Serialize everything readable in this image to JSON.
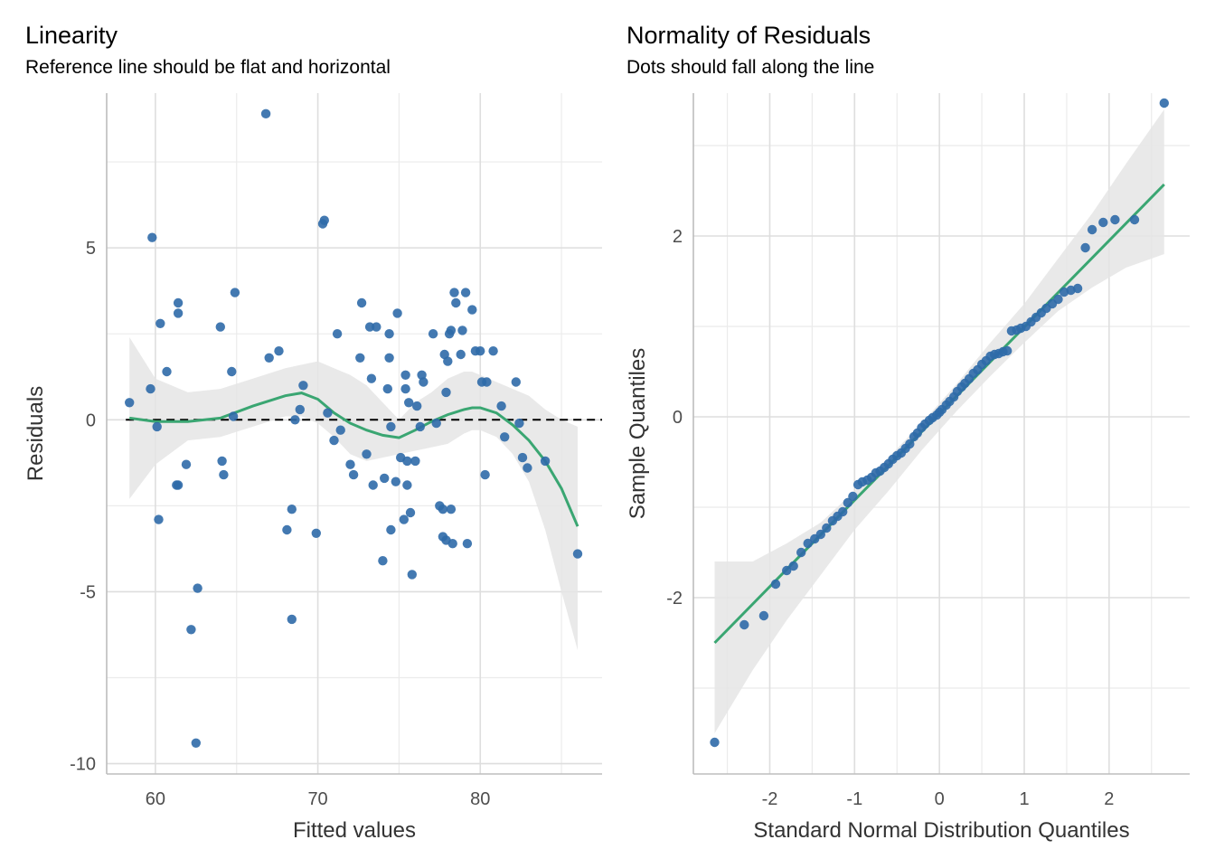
{
  "chart_data": [
    {
      "type": "scatter",
      "title": "Linearity",
      "subtitle": "Reference line should be flat and horizontal",
      "xlabel": "Fitted values",
      "ylabel": "Residuals",
      "xlim": [
        57,
        87.5
      ],
      "ylim": [
        -10.3,
        9.5
      ],
      "x_ticks": [
        60,
        70,
        80
      ],
      "x_tick_labels": [
        "60",
        "70",
        "80"
      ],
      "y_ticks": [
        -10,
        -5,
        0,
        5
      ],
      "y_tick_labels": [
        "-10",
        "-5",
        "0",
        "5"
      ],
      "grid": true,
      "reference_line": {
        "y": 0,
        "style": "dashed"
      },
      "point_color": "#2f6aa8",
      "smooth_color": "#3aa672",
      "band_color": "#e5e5e5",
      "points": {
        "x": [
          58.4,
          59.7,
          59.8,
          60.1,
          60.2,
          60.3,
          60.7,
          61.3,
          61.4,
          61.4,
          61.4,
          61.9,
          62.2,
          62.5,
          62.6,
          64.0,
          64.1,
          64.2,
          64.7,
          64.8,
          64.9,
          66.8,
          67.0,
          67.6,
          68.1,
          68.4,
          68.4,
          68.6,
          68.9,
          69.1,
          69.9,
          70.3,
          70.4,
          70.6,
          71.0,
          71.2,
          71.4,
          72.0,
          72.2,
          72.6,
          72.7,
          73.0,
          73.2,
          73.3,
          73.4,
          73.6,
          74.0,
          74.1,
          74.3,
          74.4,
          74.4,
          74.5,
          74.5,
          74.8,
          74.9,
          75.1,
          75.3,
          75.4,
          75.4,
          75.5,
          75.5,
          75.6,
          75.7,
          75.8,
          76.0,
          76.1,
          76.3,
          76.4,
          76.5,
          77.1,
          77.3,
          77.5,
          77.7,
          77.7,
          77.8,
          77.9,
          77.9,
          78.0,
          78.1,
          78.2,
          78.2,
          78.3,
          78.4,
          78.5,
          78.8,
          78.9,
          79.1,
          79.2,
          79.5,
          79.7,
          80.0,
          80.1,
          80.3,
          80.4,
          80.8,
          81.3,
          81.5,
          82.2,
          82.4,
          82.6,
          82.9,
          84.0,
          86.0
        ],
        "y": [
          0.5,
          0.9,
          5.3,
          -0.2,
          -2.9,
          2.8,
          1.4,
          -1.9,
          -1.9,
          3.1,
          3.4,
          -1.3,
          -6.1,
          -9.4,
          -4.9,
          2.7,
          -1.2,
          -1.6,
          1.4,
          0.1,
          3.7,
          8.9,
          1.8,
          2.0,
          -3.2,
          -2.6,
          -5.8,
          0.0,
          0.3,
          1.0,
          -3.3,
          5.7,
          5.8,
          0.2,
          -0.6,
          2.5,
          -0.3,
          -1.3,
          -1.6,
          1.8,
          3.4,
          -1.0,
          2.7,
          1.2,
          -1.9,
          2.7,
          -4.1,
          -1.7,
          0.9,
          1.8,
          2.5,
          -0.2,
          -3.2,
          -1.8,
          3.1,
          -1.1,
          -2.9,
          1.3,
          0.9,
          -1.2,
          -1.9,
          0.5,
          -2.7,
          -4.5,
          -1.2,
          0.4,
          -0.2,
          1.3,
          1.1,
          2.5,
          -0.1,
          -2.5,
          -3.4,
          -2.6,
          1.9,
          -3.5,
          0.8,
          1.7,
          2.5,
          2.6,
          -2.6,
          -3.6,
          3.7,
          3.4,
          1.9,
          2.6,
          3.7,
          -3.6,
          3.2,
          2.0,
          2.0,
          1.1,
          -1.6,
          1.1,
          2.0,
          0.4,
          -0.5,
          1.1,
          -0.1,
          -1.1,
          -1.4,
          -1.2,
          -3.9
        ]
      },
      "smooth": {
        "x": [
          58.4,
          60,
          62,
          64,
          66,
          68,
          69,
          70,
          71,
          72,
          73,
          74,
          75,
          76,
          77,
          78,
          79,
          79.5,
          80,
          81,
          82,
          83,
          84,
          85,
          86
        ],
        "y": [
          0.05,
          -0.05,
          -0.05,
          0.05,
          0.4,
          0.7,
          0.78,
          0.6,
          0.2,
          -0.1,
          -0.3,
          -0.45,
          -0.52,
          -0.3,
          -0.05,
          0.15,
          0.3,
          0.35,
          0.35,
          0.2,
          -0.15,
          -0.6,
          -1.2,
          -2.0,
          -3.1
        ],
        "lower": [
          -2.3,
          -1.3,
          -0.6,
          -0.5,
          -0.2,
          0.1,
          0.1,
          -0.1,
          -0.5,
          -1.0,
          -1.2,
          -1.1,
          -1.0,
          -0.9,
          -0.8,
          -0.7,
          -0.4,
          -0.3,
          -0.3,
          -0.5,
          -1.0,
          -1.8,
          -3.2,
          -5.0,
          -6.7
        ],
        "upper": [
          2.4,
          1.2,
          0.8,
          0.9,
          1.2,
          1.5,
          1.6,
          1.7,
          1.5,
          1.3,
          1.0,
          0.5,
          0.0,
          0.5,
          0.8,
          1.2,
          1.4,
          1.4,
          1.3,
          1.1,
          0.9,
          0.7,
          0.3,
          0.0,
          -0.2
        ]
      }
    },
    {
      "type": "scatter",
      "title": "Normality of Residuals",
      "subtitle": "Dots should fall along the line",
      "xlabel": "Standard Normal Distribution Quantiles",
      "ylabel": "Sample Quantiles",
      "xlim": [
        -2.9,
        2.95
      ],
      "ylim": [
        -3.95,
        3.58
      ],
      "x_ticks": [
        -2,
        -1,
        0,
        1,
        2
      ],
      "x_tick_labels": [
        "-2",
        "-1",
        "0",
        "1",
        "2"
      ],
      "y_ticks": [
        -2,
        0,
        2
      ],
      "y_tick_labels": [
        "-2",
        "0",
        "2"
      ],
      "grid": true,
      "point_color": "#2f6aa8",
      "line_color": "#3aa672",
      "band_color": "#e5e5e5",
      "line": {
        "x": [
          -2.65,
          2.65
        ],
        "y": [
          -2.5,
          2.57
        ]
      },
      "band": {
        "x": [
          -2.65,
          -2.2,
          -1.8,
          -1.4,
          -1.0,
          -0.6,
          -0.2,
          0.2,
          0.6,
          1.0,
          1.4,
          1.8,
          2.2,
          2.65
        ],
        "lower": [
          -3.5,
          -2.8,
          -2.25,
          -1.75,
          -1.25,
          -0.82,
          -0.36,
          0.06,
          0.45,
          0.82,
          1.17,
          1.43,
          1.65,
          1.8
        ],
        "upper": [
          -1.6,
          -1.6,
          -1.4,
          -1.17,
          -0.82,
          -0.45,
          -0.06,
          0.36,
          0.82,
          1.25,
          1.75,
          2.25,
          2.8,
          3.4
        ]
      },
      "points": {
        "x": [
          -2.65,
          -2.3,
          -2.07,
          -1.93,
          -1.8,
          -1.72,
          -1.63,
          -1.55,
          -1.47,
          -1.4,
          -1.33,
          -1.26,
          -1.2,
          -1.14,
          -1.08,
          -1.02,
          -0.96,
          -0.91,
          -0.85,
          -0.8,
          -0.75,
          -0.7,
          -0.65,
          -0.6,
          -0.55,
          -0.5,
          -0.45,
          -0.4,
          -0.35,
          -0.3,
          -0.26,
          -0.21,
          -0.17,
          -0.12,
          -0.08,
          -0.03,
          0.0,
          0.03,
          0.08,
          0.12,
          0.17,
          0.21,
          0.26,
          0.3,
          0.35,
          0.4,
          0.45,
          0.5,
          0.55,
          0.6,
          0.65,
          0.7,
          0.75,
          0.8,
          0.85,
          0.91,
          0.96,
          1.02,
          1.08,
          1.14,
          1.2,
          1.26,
          1.33,
          1.4,
          1.47,
          1.55,
          1.63,
          1.72,
          1.8,
          1.93,
          2.07,
          2.3,
          2.65
        ],
        "y": [
          -3.6,
          -2.3,
          -2.2,
          -1.85,
          -1.7,
          -1.65,
          -1.5,
          -1.4,
          -1.35,
          -1.3,
          -1.23,
          -1.15,
          -1.1,
          -1.05,
          -0.95,
          -0.88,
          -0.75,
          -0.72,
          -0.7,
          -0.67,
          -0.62,
          -0.6,
          -0.56,
          -0.52,
          -0.47,
          -0.43,
          -0.4,
          -0.35,
          -0.3,
          -0.22,
          -0.18,
          -0.12,
          -0.08,
          -0.04,
          -0.01,
          0.02,
          0.05,
          0.08,
          0.13,
          0.17,
          0.22,
          0.28,
          0.33,
          0.37,
          0.42,
          0.48,
          0.52,
          0.58,
          0.62,
          0.67,
          0.69,
          0.7,
          0.72,
          0.73,
          0.95,
          0.96,
          0.98,
          1.0,
          1.05,
          1.1,
          1.15,
          1.2,
          1.25,
          1.3,
          1.38,
          1.4,
          1.42,
          1.87,
          2.07,
          2.15,
          2.18,
          2.18,
          3.47
        ]
      }
    }
  ]
}
